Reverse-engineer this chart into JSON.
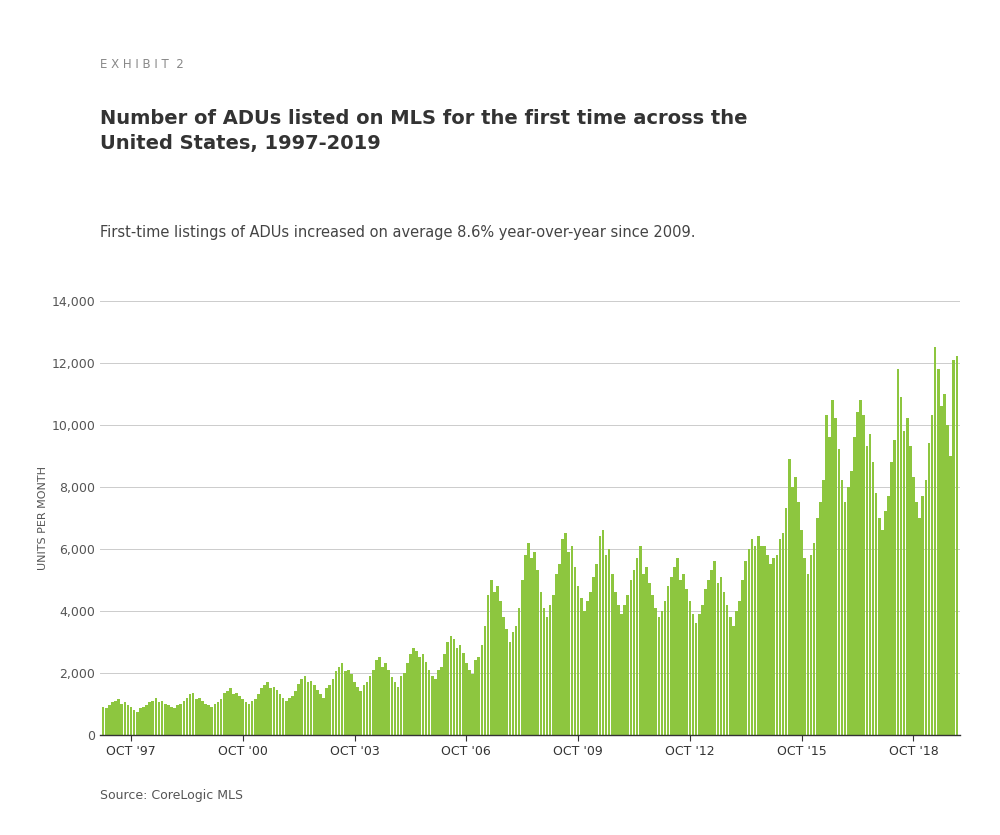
{
  "exhibit_label": "EXHIBIT 2",
  "title": "Number of ADUs listed on MLS for the first time across the\nUnited States, 1997-2019",
  "subtitle": "First-time listings of ADUs increased on average 8.6% year-over-year since 2009.",
  "ylabel": "UNITS PER MONTH",
  "source": "Source: CoreLogic MLS",
  "bar_color": "#8DC63F",
  "background_color": "#FFFFFF",
  "ylim": [
    0,
    14000
  ],
  "yticks": [
    0,
    2000,
    4000,
    6000,
    8000,
    10000,
    12000,
    14000
  ],
  "xtick_labels": [
    "OCT '97",
    "OCT '00",
    "OCT '03",
    "OCT '06",
    "OCT '09",
    "OCT '12",
    "OCT '15",
    "OCT '18"
  ],
  "xtick_positions": [
    9,
    45,
    81,
    117,
    153,
    189,
    225,
    261
  ],
  "monthly_values": [
    900,
    850,
    950,
    1050,
    1100,
    1150,
    1000,
    1050,
    950,
    900,
    800,
    750,
    850,
    900,
    950,
    1050,
    1100,
    1200,
    1050,
    1100,
    1000,
    950,
    900,
    850,
    950,
    1000,
    1100,
    1200,
    1300,
    1350,
    1150,
    1200,
    1100,
    1000,
    950,
    900,
    1000,
    1050,
    1150,
    1350,
    1400,
    1500,
    1300,
    1350,
    1250,
    1150,
    1050,
    1000,
    1100,
    1150,
    1300,
    1500,
    1600,
    1700,
    1500,
    1550,
    1450,
    1300,
    1200,
    1100,
    1200,
    1250,
    1400,
    1650,
    1800,
    1900,
    1700,
    1750,
    1600,
    1450,
    1300,
    1200,
    1500,
    1600,
    1800,
    2050,
    2200,
    2300,
    2050,
    2100,
    1950,
    1700,
    1550,
    1400,
    1600,
    1700,
    1900,
    2100,
    2400,
    2500,
    2200,
    2300,
    2100,
    1850,
    1700,
    1550,
    1900,
    2000,
    2300,
    2600,
    2800,
    2700,
    2500,
    2600,
    2350,
    2100,
    1900,
    1800,
    2100,
    2200,
    2600,
    3000,
    3200,
    3100,
    2800,
    2900,
    2650,
    2300,
    2100,
    1950,
    2400,
    2500,
    2900,
    3500,
    4500,
    5000,
    4600,
    4800,
    4300,
    3800,
    3400,
    3000,
    3300,
    3500,
    4100,
    5000,
    5800,
    6200,
    5700,
    5900,
    5300,
    4600,
    4100,
    3800,
    4200,
    4500,
    5200,
    5500,
    6300,
    6500,
    5900,
    6100,
    5400,
    4800,
    4400,
    4000,
    4300,
    4600,
    5100,
    5500,
    6400,
    6600,
    5800,
    6000,
    5200,
    4600,
    4200,
    3900,
    4200,
    4500,
    5000,
    5300,
    5700,
    6100,
    5200,
    5400,
    4900,
    4500,
    4100,
    3800,
    4000,
    4300,
    4800,
    5100,
    5400,
    5700,
    5000,
    5200,
    4700,
    4300,
    3900,
    3600,
    3900,
    4200,
    4700,
    5000,
    5300,
    5600,
    4900,
    5100,
    4600,
    4200,
    3800,
    3500,
    4000,
    4300,
    5000,
    5600,
    6000,
    6300,
    6100,
    6400,
    6100,
    6100,
    5800,
    5500,
    5700,
    5800,
    6300,
    6500,
    7300,
    8900,
    8000,
    8300,
    7500,
    6600,
    5700,
    5200,
    5800,
    6200,
    7000,
    7500,
    8200,
    10300,
    9600,
    10800,
    10200,
    9200,
    8200,
    7500,
    8000,
    8500,
    9600,
    10400,
    10800,
    10300,
    9300,
    9700,
    8800,
    7800,
    7000,
    6600,
    7200,
    7700,
    8800,
    9500,
    11800,
    10900,
    9800,
    10200,
    9300,
    8300,
    7500,
    7000,
    7700,
    8200,
    9400,
    10300,
    12500,
    11800,
    10600,
    11000,
    10000,
    9000,
    12100,
    12200
  ]
}
